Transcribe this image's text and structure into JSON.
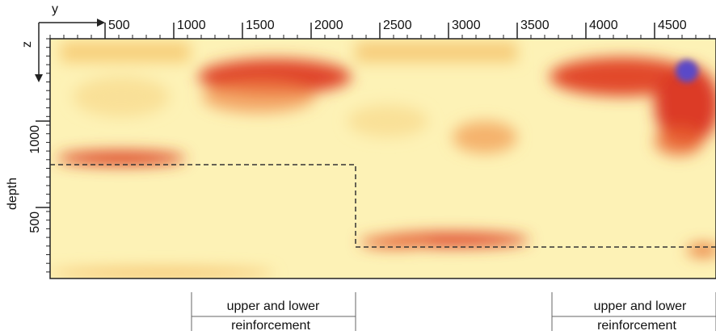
{
  "axes": {
    "horizontal_label": "y",
    "vertical_label": "z",
    "depth_label": "depth",
    "top_ticks": [
      "500",
      "1000",
      "1500",
      "2000",
      "2500",
      "3000",
      "3500",
      "4000",
      "4500"
    ],
    "left_ticks": [
      "1000",
      "500"
    ]
  },
  "annotations": [
    {
      "line1": "upper and lower",
      "line2": "reinforcement"
    },
    {
      "line1": "upper and lower",
      "line2": "reinforcement"
    }
  ]
}
